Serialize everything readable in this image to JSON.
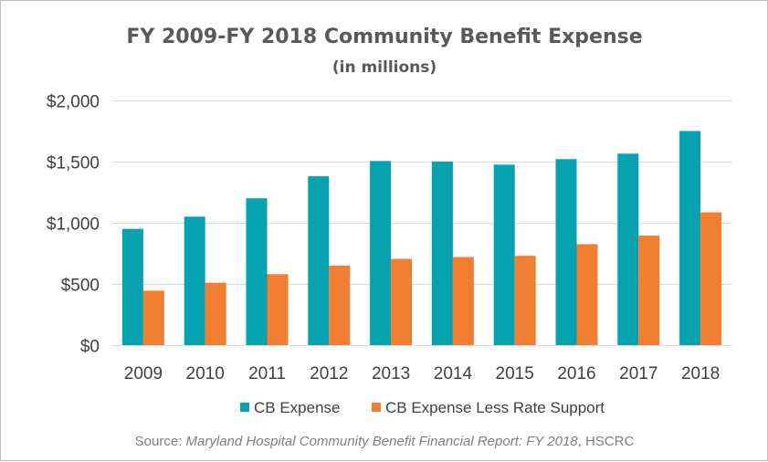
{
  "chart_data": {
    "type": "bar",
    "title": "FY 2009-FY 2018 Community Benefit Expense",
    "subtitle": "(in millions)",
    "categories": [
      "2009",
      "2010",
      "2011",
      "2012",
      "2013",
      "2014",
      "2015",
      "2016",
      "2017",
      "2018"
    ],
    "series": [
      {
        "name": "CB Expense",
        "color": "#06A2B0",
        "values": [
          950,
          1050,
          1200,
          1380,
          1505,
          1500,
          1475,
          1520,
          1565,
          1750
        ]
      },
      {
        "name": "CB Expense Less Rate Support",
        "color": "#F07F33",
        "values": [
          445,
          510,
          580,
          650,
          705,
          720,
          730,
          825,
          895,
          1085
        ]
      }
    ],
    "ylim": [
      0,
      2000
    ],
    "yticks": [
      0,
      500,
      1000,
      1500,
      2000
    ],
    "ytick_labels": [
      "$0",
      "$500",
      "$1,000",
      "$1,500",
      "$2,000"
    ],
    "xlabel": "",
    "ylabel": "",
    "grid": true,
    "legend_position": "bottom",
    "gridline_color": "#d9d9d9"
  },
  "source": {
    "prefix": "Source: ",
    "italic": "Maryland Hospital Community Benefit Financial Report: FY 2018",
    "suffix": ", HSCRC"
  }
}
